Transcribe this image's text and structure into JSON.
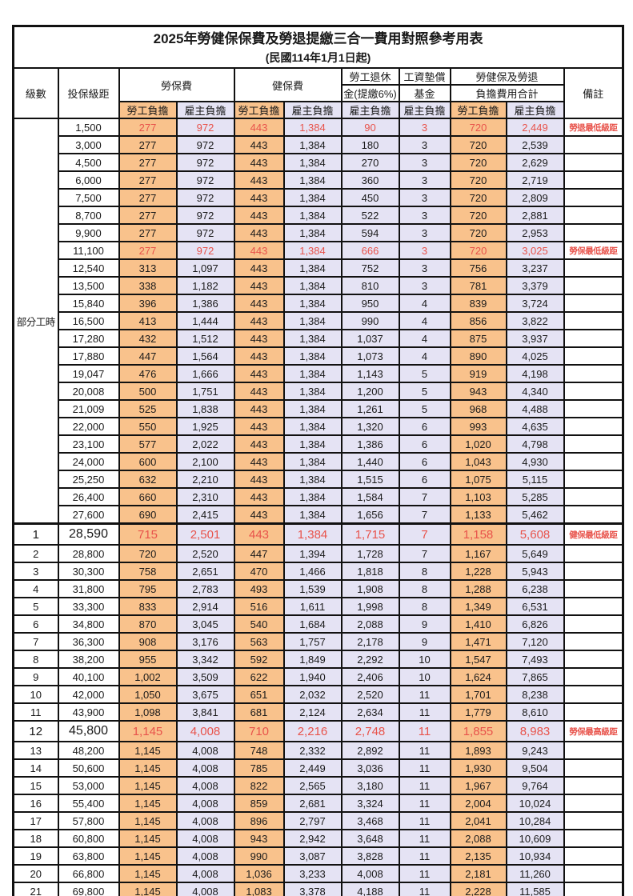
{
  "title": "2025年勞健保保費及勞退提繳三合一費用對照參考用表",
  "subtitle": "(民國114年1月1日起)",
  "colors": {
    "employee_col_bg": "#F9C28C",
    "employer_col_bg": "#E5E3F4",
    "highlight_text": "#E8534B",
    "grid_line": "#111111"
  },
  "header": {
    "level": "級數",
    "bracket": "投保級距",
    "labor_fee": "勞保費",
    "health_fee": "健保費",
    "pension_line1": "勞工退休",
    "pension_line2": "金(提繳6%)",
    "arrears_line1": "工資墊償",
    "arrears_line2": "基金",
    "total_line1": "勞健保及勞退",
    "total_line2": "負擔費用合計",
    "note": "備註",
    "employee": "勞工負擔",
    "employer": "雇主負擔"
  },
  "part_time_label": "部分工時",
  "part_time_rowspan": 23,
  "rows": [
    {
      "level": "",
      "bracket": "1,500",
      "values": [
        "277",
        "972",
        "443",
        "1,384",
        "90",
        "3",
        "720",
        "2,449"
      ],
      "note": "勞退最低級距",
      "red": true,
      "big": false,
      "section_start": false
    },
    {
      "level": "",
      "bracket": "3,000",
      "values": [
        "277",
        "972",
        "443",
        "1,384",
        "180",
        "3",
        "720",
        "2,539"
      ],
      "note": "",
      "red": false,
      "big": false,
      "section_start": false
    },
    {
      "level": "",
      "bracket": "4,500",
      "values": [
        "277",
        "972",
        "443",
        "1,384",
        "270",
        "3",
        "720",
        "2,629"
      ],
      "note": "",
      "red": false,
      "big": false,
      "section_start": false
    },
    {
      "level": "",
      "bracket": "6,000",
      "values": [
        "277",
        "972",
        "443",
        "1,384",
        "360",
        "3",
        "720",
        "2,719"
      ],
      "note": "",
      "red": false,
      "big": false,
      "section_start": false
    },
    {
      "level": "",
      "bracket": "7,500",
      "values": [
        "277",
        "972",
        "443",
        "1,384",
        "450",
        "3",
        "720",
        "2,809"
      ],
      "note": "",
      "red": false,
      "big": false,
      "section_start": false
    },
    {
      "level": "",
      "bracket": "8,700",
      "values": [
        "277",
        "972",
        "443",
        "1,384",
        "522",
        "3",
        "720",
        "2,881"
      ],
      "note": "",
      "red": false,
      "big": false,
      "section_start": false
    },
    {
      "level": "",
      "bracket": "9,900",
      "values": [
        "277",
        "972",
        "443",
        "1,384",
        "594",
        "3",
        "720",
        "2,953"
      ],
      "note": "",
      "red": false,
      "big": false,
      "section_start": false
    },
    {
      "level": "",
      "bracket": "11,100",
      "values": [
        "277",
        "972",
        "443",
        "1,384",
        "666",
        "3",
        "720",
        "3,025"
      ],
      "note": "勞保最低級距",
      "red": true,
      "big": false,
      "section_start": false
    },
    {
      "level": "",
      "bracket": "12,540",
      "values": [
        "313",
        "1,097",
        "443",
        "1,384",
        "752",
        "3",
        "756",
        "3,237"
      ],
      "note": "",
      "red": false,
      "big": false,
      "section_start": false
    },
    {
      "level": "",
      "bracket": "13,500",
      "values": [
        "338",
        "1,182",
        "443",
        "1,384",
        "810",
        "3",
        "781",
        "3,379"
      ],
      "note": "",
      "red": false,
      "big": false,
      "section_start": false
    },
    {
      "level": "",
      "bracket": "15,840",
      "values": [
        "396",
        "1,386",
        "443",
        "1,384",
        "950",
        "4",
        "839",
        "3,724"
      ],
      "note": "",
      "red": false,
      "big": false,
      "section_start": false
    },
    {
      "level": "",
      "bracket": "16,500",
      "values": [
        "413",
        "1,444",
        "443",
        "1,384",
        "990",
        "4",
        "856",
        "3,822"
      ],
      "note": "",
      "red": false,
      "big": false,
      "section_start": false
    },
    {
      "level": "",
      "bracket": "17,280",
      "values": [
        "432",
        "1,512",
        "443",
        "1,384",
        "1,037",
        "4",
        "875",
        "3,937"
      ],
      "note": "",
      "red": false,
      "big": false,
      "section_start": false
    },
    {
      "level": "",
      "bracket": "17,880",
      "values": [
        "447",
        "1,564",
        "443",
        "1,384",
        "1,073",
        "4",
        "890",
        "4,025"
      ],
      "note": "",
      "red": false,
      "big": false,
      "section_start": false
    },
    {
      "level": "",
      "bracket": "19,047",
      "values": [
        "476",
        "1,666",
        "443",
        "1,384",
        "1,143",
        "5",
        "919",
        "4,198"
      ],
      "note": "",
      "red": false,
      "big": false,
      "section_start": false
    },
    {
      "level": "",
      "bracket": "20,008",
      "values": [
        "500",
        "1,751",
        "443",
        "1,384",
        "1,200",
        "5",
        "943",
        "4,340"
      ],
      "note": "",
      "red": false,
      "big": false,
      "section_start": false
    },
    {
      "level": "",
      "bracket": "21,009",
      "values": [
        "525",
        "1,838",
        "443",
        "1,384",
        "1,261",
        "5",
        "968",
        "4,488"
      ],
      "note": "",
      "red": false,
      "big": false,
      "section_start": false
    },
    {
      "level": "",
      "bracket": "22,000",
      "values": [
        "550",
        "1,925",
        "443",
        "1,384",
        "1,320",
        "6",
        "993",
        "4,635"
      ],
      "note": "",
      "red": false,
      "big": false,
      "section_start": false
    },
    {
      "level": "",
      "bracket": "23,100",
      "values": [
        "577",
        "2,022",
        "443",
        "1,384",
        "1,386",
        "6",
        "1,020",
        "4,798"
      ],
      "note": "",
      "red": false,
      "big": false,
      "section_start": false
    },
    {
      "level": "",
      "bracket": "24,000",
      "values": [
        "600",
        "2,100",
        "443",
        "1,384",
        "1,440",
        "6",
        "1,043",
        "4,930"
      ],
      "note": "",
      "red": false,
      "big": false,
      "section_start": false
    },
    {
      "level": "",
      "bracket": "25,250",
      "values": [
        "632",
        "2,210",
        "443",
        "1,384",
        "1,515",
        "6",
        "1,075",
        "5,115"
      ],
      "note": "",
      "red": false,
      "big": false,
      "section_start": false
    },
    {
      "level": "",
      "bracket": "26,400",
      "values": [
        "660",
        "2,310",
        "443",
        "1,384",
        "1,584",
        "7",
        "1,103",
        "5,285"
      ],
      "note": "",
      "red": false,
      "big": false,
      "section_start": false
    },
    {
      "level": "",
      "bracket": "27,600",
      "values": [
        "690",
        "2,415",
        "443",
        "1,384",
        "1,656",
        "7",
        "1,133",
        "5,462"
      ],
      "note": "",
      "red": false,
      "big": false,
      "section_start": false
    },
    {
      "level": "1",
      "bracket": "28,590",
      "values": [
        "715",
        "2,501",
        "443",
        "1,384",
        "1,715",
        "7",
        "1,158",
        "5,608"
      ],
      "note": "健保最低級距",
      "red": true,
      "big": true,
      "section_start": true
    },
    {
      "level": "2",
      "bracket": "28,800",
      "values": [
        "720",
        "2,520",
        "447",
        "1,394",
        "1,728",
        "7",
        "1,167",
        "5,649"
      ],
      "note": "",
      "red": false,
      "big": false,
      "section_start": false
    },
    {
      "level": "3",
      "bracket": "30,300",
      "values": [
        "758",
        "2,651",
        "470",
        "1,466",
        "1,818",
        "8",
        "1,228",
        "5,943"
      ],
      "note": "",
      "red": false,
      "big": false,
      "section_start": false
    },
    {
      "level": "4",
      "bracket": "31,800",
      "values": [
        "795",
        "2,783",
        "493",
        "1,539",
        "1,908",
        "8",
        "1,288",
        "6,238"
      ],
      "note": "",
      "red": false,
      "big": false,
      "section_start": false
    },
    {
      "level": "5",
      "bracket": "33,300",
      "values": [
        "833",
        "2,914",
        "516",
        "1,611",
        "1,998",
        "8",
        "1,349",
        "6,531"
      ],
      "note": "",
      "red": false,
      "big": false,
      "section_start": false
    },
    {
      "level": "6",
      "bracket": "34,800",
      "values": [
        "870",
        "3,045",
        "540",
        "1,684",
        "2,088",
        "9",
        "1,410",
        "6,826"
      ],
      "note": "",
      "red": false,
      "big": false,
      "section_start": false
    },
    {
      "level": "7",
      "bracket": "36,300",
      "values": [
        "908",
        "3,176",
        "563",
        "1,757",
        "2,178",
        "9",
        "1,471",
        "7,120"
      ],
      "note": "",
      "red": false,
      "big": false,
      "section_start": false
    },
    {
      "level": "8",
      "bracket": "38,200",
      "values": [
        "955",
        "3,342",
        "592",
        "1,849",
        "2,292",
        "10",
        "1,547",
        "7,493"
      ],
      "note": "",
      "red": false,
      "big": false,
      "section_start": false
    },
    {
      "level": "9",
      "bracket": "40,100",
      "values": [
        "1,002",
        "3,509",
        "622",
        "1,940",
        "2,406",
        "10",
        "1,624",
        "7,865"
      ],
      "note": "",
      "red": false,
      "big": false,
      "section_start": false
    },
    {
      "level": "10",
      "bracket": "42,000",
      "values": [
        "1,050",
        "3,675",
        "651",
        "2,032",
        "2,520",
        "11",
        "1,701",
        "8,238"
      ],
      "note": "",
      "red": false,
      "big": false,
      "section_start": false
    },
    {
      "level": "11",
      "bracket": "43,900",
      "values": [
        "1,098",
        "3,841",
        "681",
        "2,124",
        "2,634",
        "11",
        "1,779",
        "8,610"
      ],
      "note": "",
      "red": false,
      "big": false,
      "section_start": false
    },
    {
      "level": "12",
      "bracket": "45,800",
      "values": [
        "1,145",
        "4,008",
        "710",
        "2,216",
        "2,748",
        "11",
        "1,855",
        "8,983"
      ],
      "note": "勞保最高級距",
      "red": true,
      "big": true,
      "section_start": false
    },
    {
      "level": "13",
      "bracket": "48,200",
      "values": [
        "1,145",
        "4,008",
        "748",
        "2,332",
        "2,892",
        "11",
        "1,893",
        "9,243"
      ],
      "note": "",
      "red": false,
      "big": false,
      "section_start": false
    },
    {
      "level": "14",
      "bracket": "50,600",
      "values": [
        "1,145",
        "4,008",
        "785",
        "2,449",
        "3,036",
        "11",
        "1,930",
        "9,504"
      ],
      "note": "",
      "red": false,
      "big": false,
      "section_start": false
    },
    {
      "level": "15",
      "bracket": "53,000",
      "values": [
        "1,145",
        "4,008",
        "822",
        "2,565",
        "3,180",
        "11",
        "1,967",
        "9,764"
      ],
      "note": "",
      "red": false,
      "big": false,
      "section_start": false
    },
    {
      "level": "16",
      "bracket": "55,400",
      "values": [
        "1,145",
        "4,008",
        "859",
        "2,681",
        "3,324",
        "11",
        "2,004",
        "10,024"
      ],
      "note": "",
      "red": false,
      "big": false,
      "section_start": false
    },
    {
      "level": "17",
      "bracket": "57,800",
      "values": [
        "1,145",
        "4,008",
        "896",
        "2,797",
        "3,468",
        "11",
        "2,041",
        "10,284"
      ],
      "note": "",
      "red": false,
      "big": false,
      "section_start": false
    },
    {
      "level": "18",
      "bracket": "60,800",
      "values": [
        "1,145",
        "4,008",
        "943",
        "2,942",
        "3,648",
        "11",
        "2,088",
        "10,609"
      ],
      "note": "",
      "red": false,
      "big": false,
      "section_start": false
    },
    {
      "level": "19",
      "bracket": "63,800",
      "values": [
        "1,145",
        "4,008",
        "990",
        "3,087",
        "3,828",
        "11",
        "2,135",
        "10,934"
      ],
      "note": "",
      "red": false,
      "big": false,
      "section_start": false
    },
    {
      "level": "20",
      "bracket": "66,800",
      "values": [
        "1,145",
        "4,008",
        "1,036",
        "3,233",
        "4,008",
        "11",
        "2,181",
        "11,260"
      ],
      "note": "",
      "red": false,
      "big": false,
      "section_start": false
    },
    {
      "level": "21",
      "bracket": "69,800",
      "values": [
        "1,145",
        "4,008",
        "1,083",
        "3,378",
        "4,188",
        "11",
        "2,228",
        "11,585"
      ],
      "note": "",
      "red": false,
      "big": false,
      "section_start": false
    }
  ]
}
